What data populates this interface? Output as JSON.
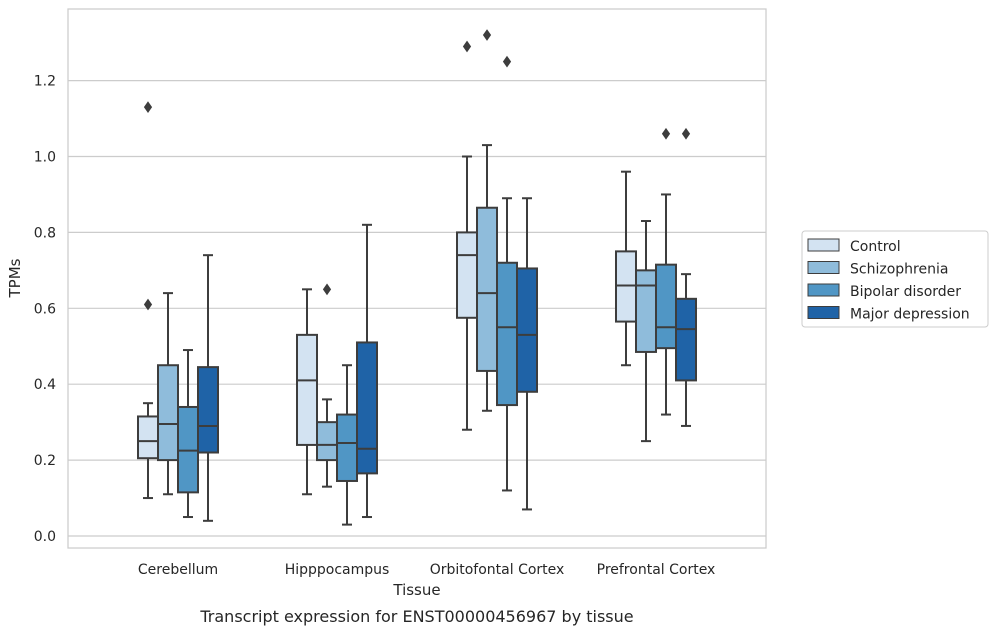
{
  "chart_data": {
    "type": "boxplot",
    "caption": "Transcript expression for ENST00000456967 by tissue",
    "xlabel": "Tissue",
    "ylabel": "TPMs",
    "ylim": [
      -0.03,
      1.4
    ],
    "yticks": [
      "0.0",
      "0.2",
      "0.4",
      "0.6",
      "0.8",
      "1.0",
      "1.2"
    ],
    "grid": "horizontal",
    "legend_position": "right",
    "categories": [
      "Cerebellum",
      "Hipppocampus",
      "Orbitofontal Cortex",
      "Prefrontal Cortex"
    ],
    "series": [
      {
        "name": "Control",
        "color": "#d3e3f2",
        "boxes": [
          {
            "whisker_low": 0.1,
            "q1": 0.205,
            "median": 0.25,
            "q3": 0.315,
            "whisker_high": 0.35,
            "outliers": [
              0.61,
              1.13
            ]
          },
          {
            "whisker_low": 0.11,
            "q1": 0.24,
            "median": 0.41,
            "q3": 0.53,
            "whisker_high": 0.65,
            "outliers": []
          },
          {
            "whisker_low": 0.28,
            "q1": 0.575,
            "median": 0.74,
            "q3": 0.8,
            "whisker_high": 1.0,
            "outliers": [
              1.29
            ]
          },
          {
            "whisker_low": 0.45,
            "q1": 0.565,
            "median": 0.66,
            "q3": 0.75,
            "whisker_high": 0.96,
            "outliers": []
          }
        ]
      },
      {
        "name": "Schizophrenia",
        "color": "#8fbcdb",
        "boxes": [
          {
            "whisker_low": 0.11,
            "q1": 0.2,
            "median": 0.295,
            "q3": 0.45,
            "whisker_high": 0.64,
            "outliers": []
          },
          {
            "whisker_low": 0.13,
            "q1": 0.2,
            "median": 0.24,
            "q3": 0.3,
            "whisker_high": 0.36,
            "outliers": [
              0.65
            ]
          },
          {
            "whisker_low": 0.33,
            "q1": 0.435,
            "median": 0.64,
            "q3": 0.865,
            "whisker_high": 1.03,
            "outliers": [
              1.32
            ]
          },
          {
            "whisker_low": 0.25,
            "q1": 0.485,
            "median": 0.66,
            "q3": 0.7,
            "whisker_high": 0.83,
            "outliers": []
          }
        ]
      },
      {
        "name": "Bipolar disorder",
        "color": "#5096c5",
        "boxes": [
          {
            "whisker_low": 0.05,
            "q1": 0.115,
            "median": 0.225,
            "q3": 0.34,
            "whisker_high": 0.49,
            "outliers": []
          },
          {
            "whisker_low": 0.03,
            "q1": 0.145,
            "median": 0.245,
            "q3": 0.32,
            "whisker_high": 0.45,
            "outliers": []
          },
          {
            "whisker_low": 0.12,
            "q1": 0.345,
            "median": 0.55,
            "q3": 0.72,
            "whisker_high": 0.89,
            "outliers": [
              1.25
            ]
          },
          {
            "whisker_low": 0.32,
            "q1": 0.495,
            "median": 0.55,
            "q3": 0.715,
            "whisker_high": 0.9,
            "outliers": [
              1.06
            ]
          }
        ]
      },
      {
        "name": "Major depression",
        "color": "#1f63a7",
        "boxes": [
          {
            "whisker_low": 0.04,
            "q1": 0.22,
            "median": 0.29,
            "q3": 0.445,
            "whisker_high": 0.74,
            "outliers": []
          },
          {
            "whisker_low": 0.05,
            "q1": 0.165,
            "median": 0.23,
            "q3": 0.51,
            "whisker_high": 0.82,
            "outliers": []
          },
          {
            "whisker_low": 0.07,
            "q1": 0.38,
            "median": 0.53,
            "q3": 0.705,
            "whisker_high": 0.89,
            "outliers": []
          },
          {
            "whisker_low": 0.29,
            "q1": 0.41,
            "median": 0.545,
            "q3": 0.625,
            "whisker_high": 0.69,
            "outliers": [
              1.06
            ]
          }
        ]
      }
    ]
  }
}
